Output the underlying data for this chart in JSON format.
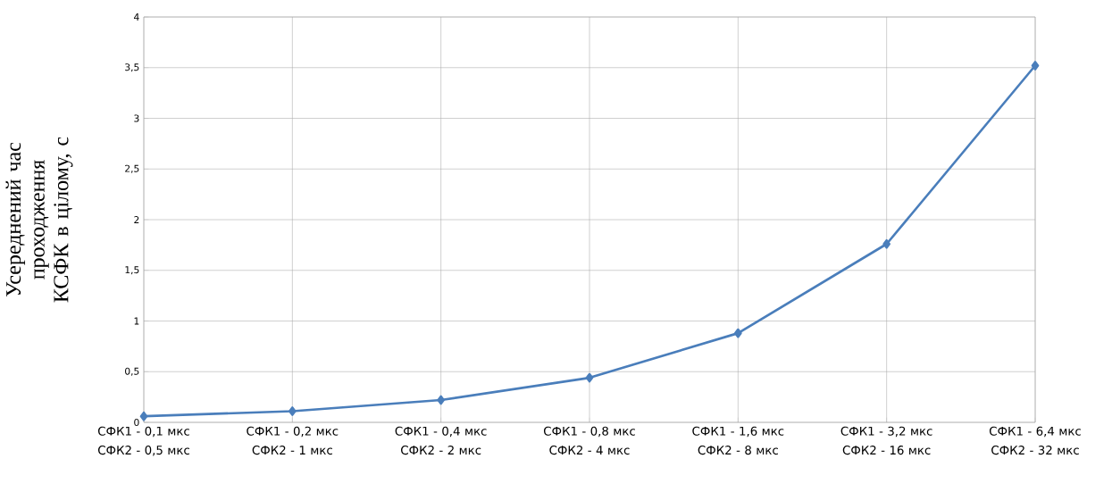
{
  "chart_data": {
    "type": "line",
    "ylabel": "Усереднений час проходження КСФК в цілому, с",
    "categories": [
      "СФК1 - 0,1 мкс СФК2 - 0,5 мкс",
      "СФК1 - 0,2 мкс СФК2 - 1 мкс",
      "СФК1 - 0,4 мкс СФК2 - 2 мкс",
      "СФК1 - 0,8 мкс СФК2 - 4 мкс",
      "СФК1 - 1,6 мкс СФК2 - 8 мкс",
      "СФК1 - 3,2 мкс СФК2 - 16 мкс",
      "СФК1 - 6,4 мкс СФК2 - 32 мкс"
    ],
    "values": [
      0.06,
      0.11,
      0.22,
      0.44,
      0.88,
      1.76,
      3.52
    ],
    "color": "#4a7ebb",
    "ylim": [
      0,
      4
    ],
    "yticks": [
      0,
      {
        "value": 0.5,
        "label": "0,5"
      },
      1,
      {
        "value": 1.5,
        "label": "1,5"
      },
      2,
      {
        "value": 2.5,
        "label": "2,5"
      },
      3,
      {
        "value": 3.5,
        "label": "3,5"
      },
      4
    ],
    "grid": true,
    "marker": "diamond",
    "line_style": "solid"
  }
}
